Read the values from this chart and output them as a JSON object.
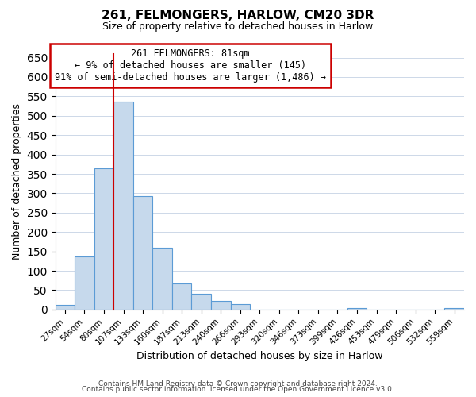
{
  "title": "261, FELMONGERS, HARLOW, CM20 3DR",
  "subtitle": "Size of property relative to detached houses in Harlow",
  "xlabel": "Distribution of detached houses by size in Harlow",
  "ylabel": "Number of detached properties",
  "bar_color": "#c6d9ec",
  "bar_edge_color": "#5b9bd5",
  "bin_labels": [
    "27sqm",
    "54sqm",
    "80sqm",
    "107sqm",
    "133sqm",
    "160sqm",
    "187sqm",
    "213sqm",
    "240sqm",
    "266sqm",
    "293sqm",
    "320sqm",
    "346sqm",
    "373sqm",
    "399sqm",
    "426sqm",
    "453sqm",
    "479sqm",
    "506sqm",
    "532sqm",
    "559sqm"
  ],
  "bar_heights": [
    12,
    137,
    365,
    537,
    293,
    160,
    67,
    40,
    22,
    15,
    0,
    0,
    0,
    0,
    0,
    3,
    0,
    0,
    0,
    0,
    3
  ],
  "ylim": [
    0,
    660
  ],
  "yticks": [
    0,
    50,
    100,
    150,
    200,
    250,
    300,
    350,
    400,
    450,
    500,
    550,
    600,
    650
  ],
  "vline_color": "#cc0000",
  "annotation_line1": "261 FELMONGERS: 81sqm",
  "annotation_line2": "← 9% of detached houses are smaller (145)",
  "annotation_line3": "91% of semi-detached houses are larger (1,486) →",
  "annotation_box_color": "#ffffff",
  "annotation_box_edge_color": "#cc0000",
  "footer_line1": "Contains HM Land Registry data © Crown copyright and database right 2024.",
  "footer_line2": "Contains public sector information licensed under the Open Government Licence v3.0.",
  "background_color": "#ffffff",
  "grid_color": "#cdd8e8"
}
